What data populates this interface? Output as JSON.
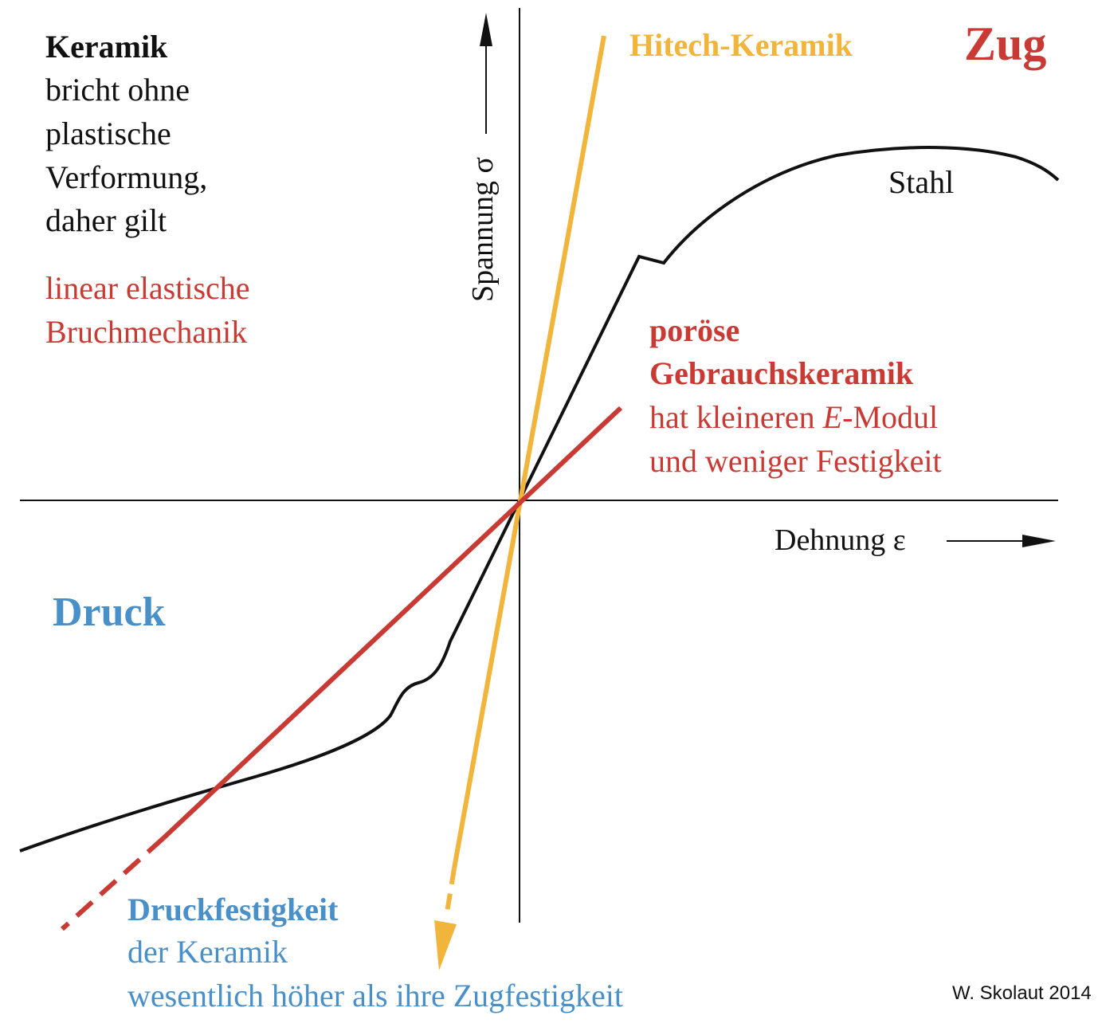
{
  "colors": {
    "black": "#111111",
    "red": "#c83a33",
    "orange": "#f0b53a",
    "blue": "#4a90c8"
  },
  "axes": {
    "y_label": "Spannung σ",
    "x_label": "Dehnung ε"
  },
  "region_labels": {
    "zug": "Zug",
    "druck": "Druck"
  },
  "curves": {
    "hitech": "Hitech-Keramik",
    "stahl": "Stahl",
    "porous_line1": "poröse",
    "porous_line2": "Gebrauchskeramik",
    "porous_line3_pre": "hat kleineren ",
    "porous_line3_e": "E",
    "porous_line3_post": "-Modul",
    "porous_line4": "und weniger Festigkeit"
  },
  "keramik_note": {
    "title": "Keramik",
    "lines": [
      "bricht ohne",
      "plastische",
      "Verformung,",
      "daher gilt"
    ],
    "red_lines": [
      "linear elastische",
      "Bruchmechanik"
    ]
  },
  "druck_note": {
    "title": "Druckfestigkeit",
    "lines": [
      "der Keramik",
      "wesentlich höher als ihre Zugfestigkeit"
    ]
  },
  "credit": "W. Skolaut 2014"
}
